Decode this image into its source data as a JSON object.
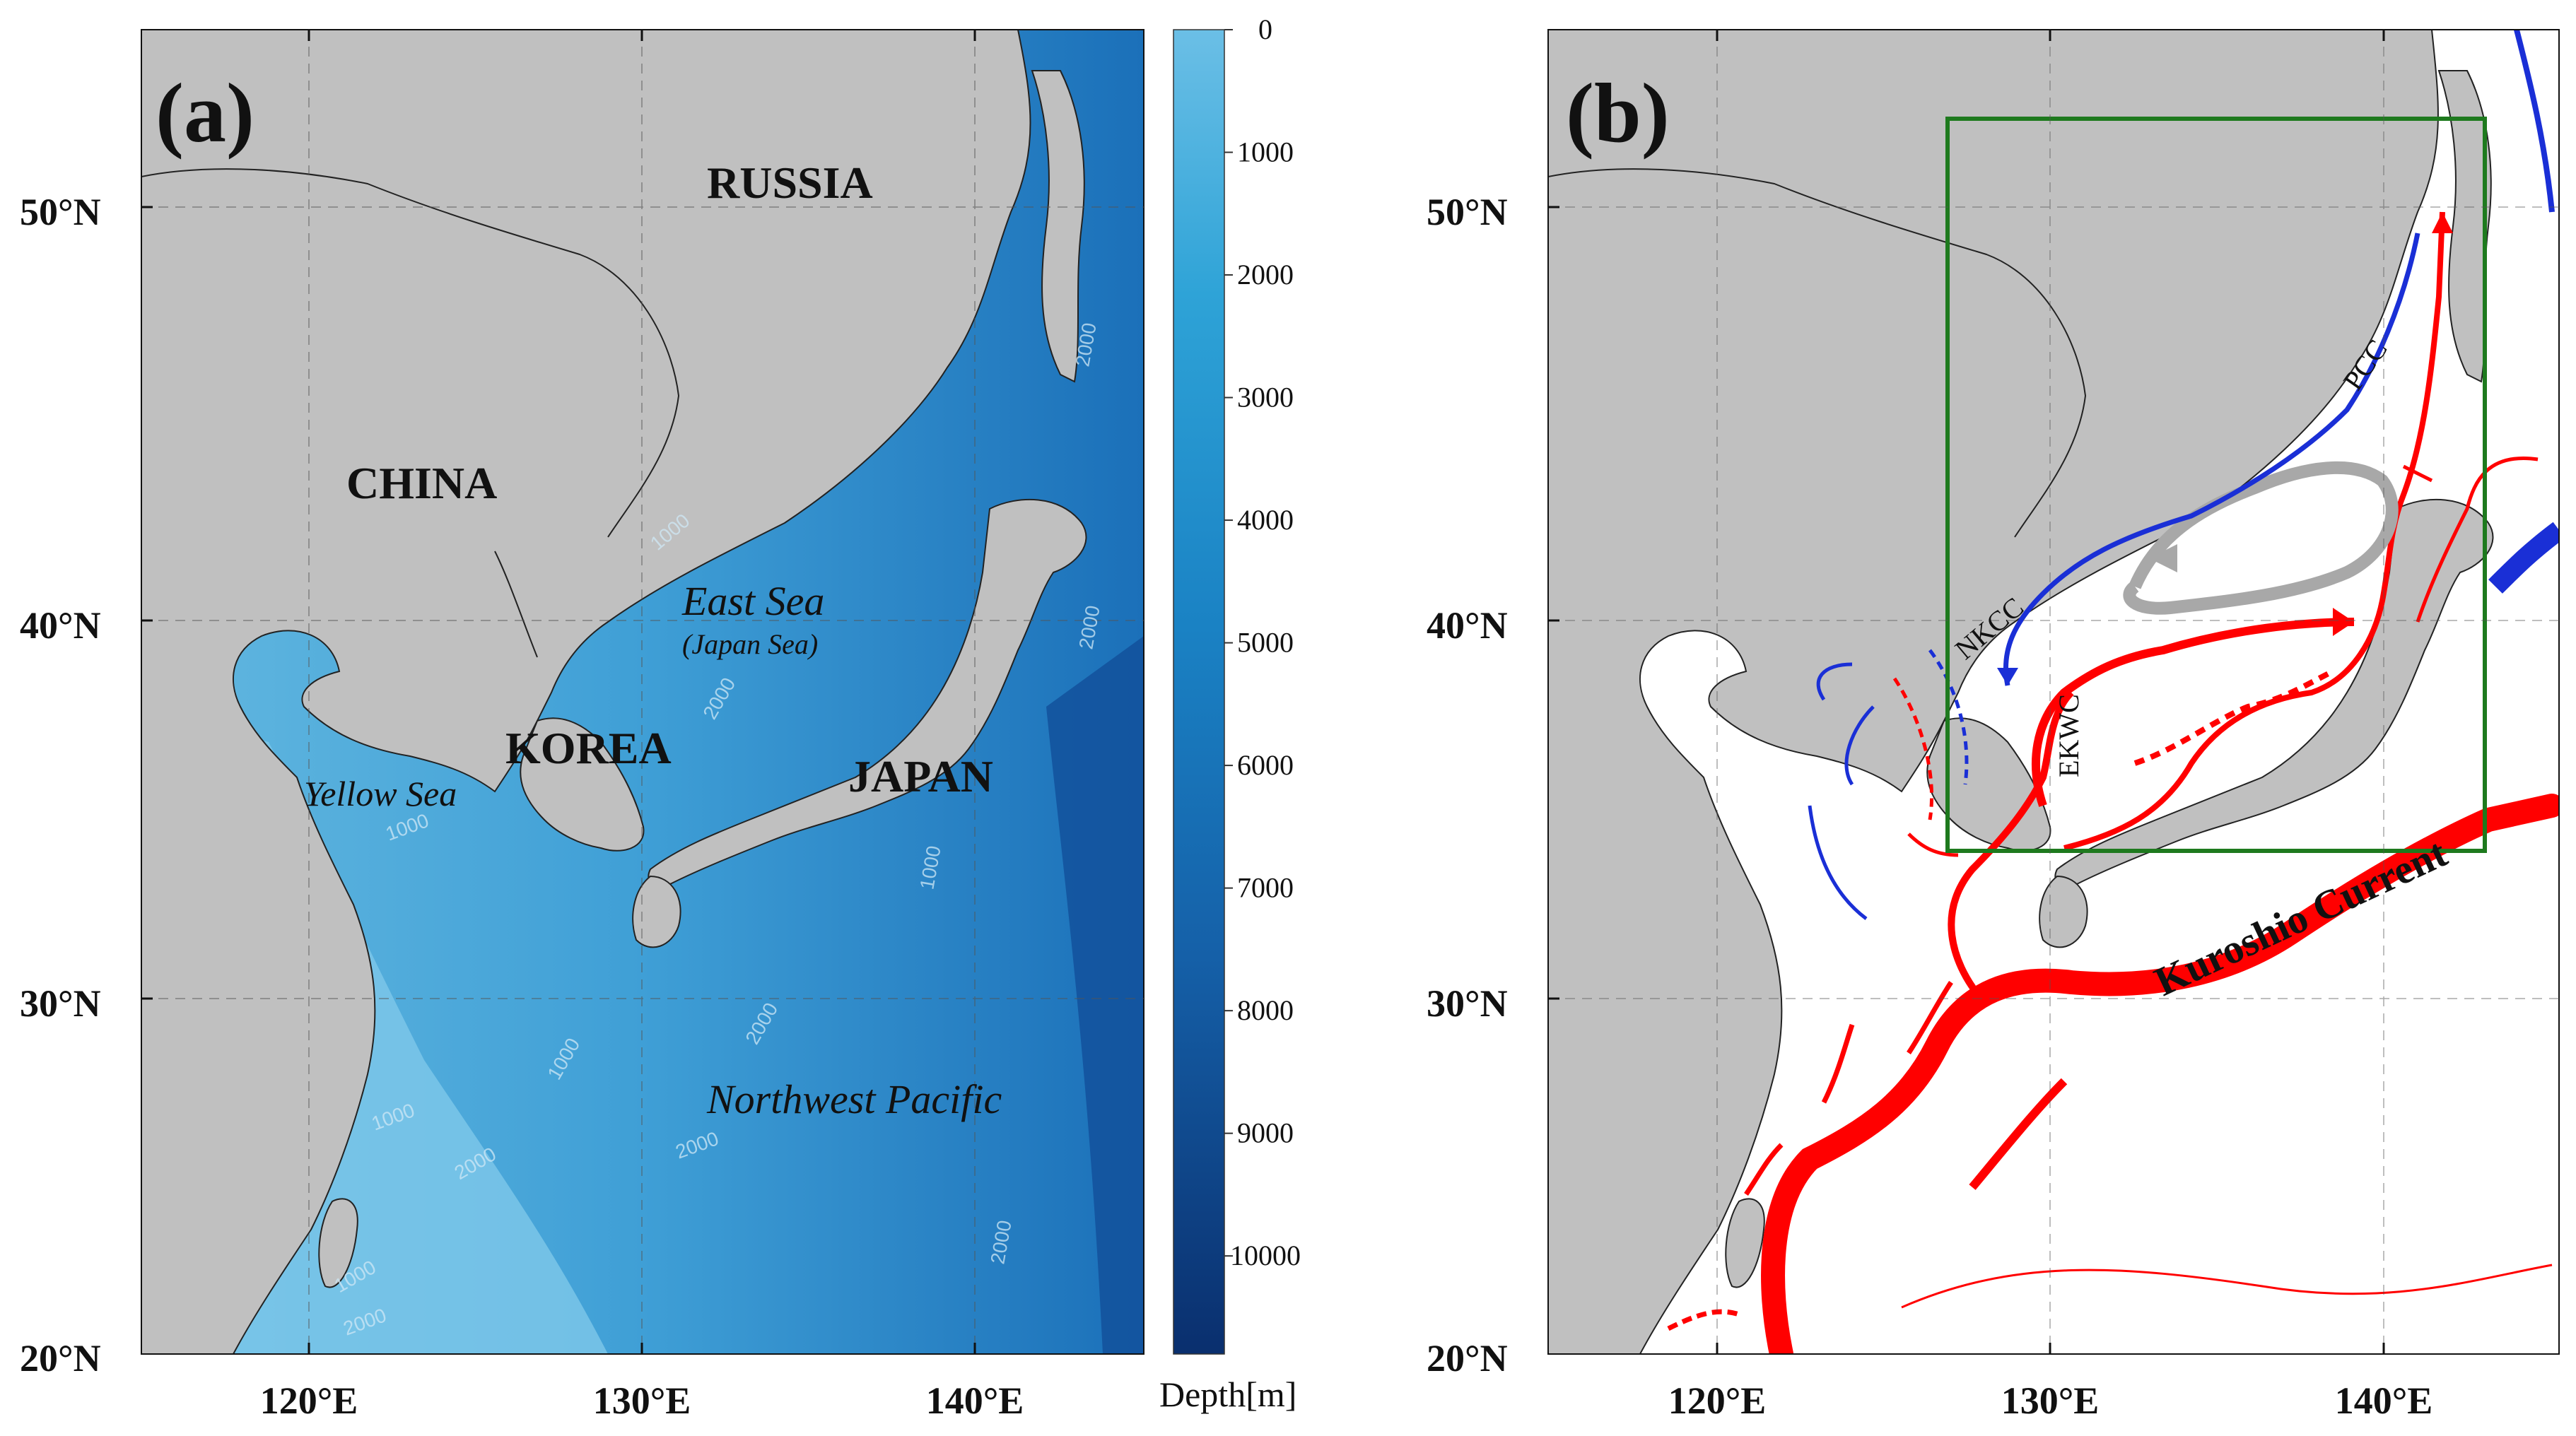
{
  "panel_a": {
    "label": "(a)",
    "lat_labels": [
      "50°N",
      "40°N",
      "30°N",
      "20°N"
    ],
    "lon_labels": [
      "120°E",
      "130°E",
      "140°E"
    ],
    "places": {
      "russia": "RUSSIA",
      "china": "CHINA",
      "korea": "KOREA",
      "japan": "JAPAN",
      "east_sea": "East Sea",
      "japan_sea": "(Japan Sea)",
      "yellow_sea": "Yellow Sea",
      "nw_pacific": "Northwest Pacific"
    },
    "contours": [
      "2000",
      "1000",
      "2000",
      "1000",
      "2000",
      "1000",
      "1000",
      "2000",
      "2000",
      "1000",
      "2000",
      "2000",
      "2000",
      "1000"
    ],
    "colorbar": {
      "ticks": [
        "0",
        "1000",
        "2000",
        "3000",
        "4000",
        "5000",
        "6000",
        "7000",
        "8000",
        "9000",
        "10000"
      ],
      "title": "Depth[m]",
      "color_shallow": "#6bbfe6",
      "color_deep": "#0a2f6e"
    }
  },
  "panel_b": {
    "label": "(b)",
    "lat_labels": [
      "50°N",
      "40°N",
      "30°N",
      "20°N"
    ],
    "lon_labels": [
      "120°E",
      "130°E",
      "140°E"
    ],
    "current_labels": {
      "pcc": "PCC",
      "nkcc": "NKCC",
      "ekwc": "EKWC",
      "kuroshio": "Kuroshio Current"
    },
    "colors": {
      "warm_current": "#ff0000",
      "cold_current": "#1a2fd6",
      "gyre": "#a8a8a8",
      "study_box": "#1e7a1e",
      "land": "#c0c0c0"
    }
  }
}
